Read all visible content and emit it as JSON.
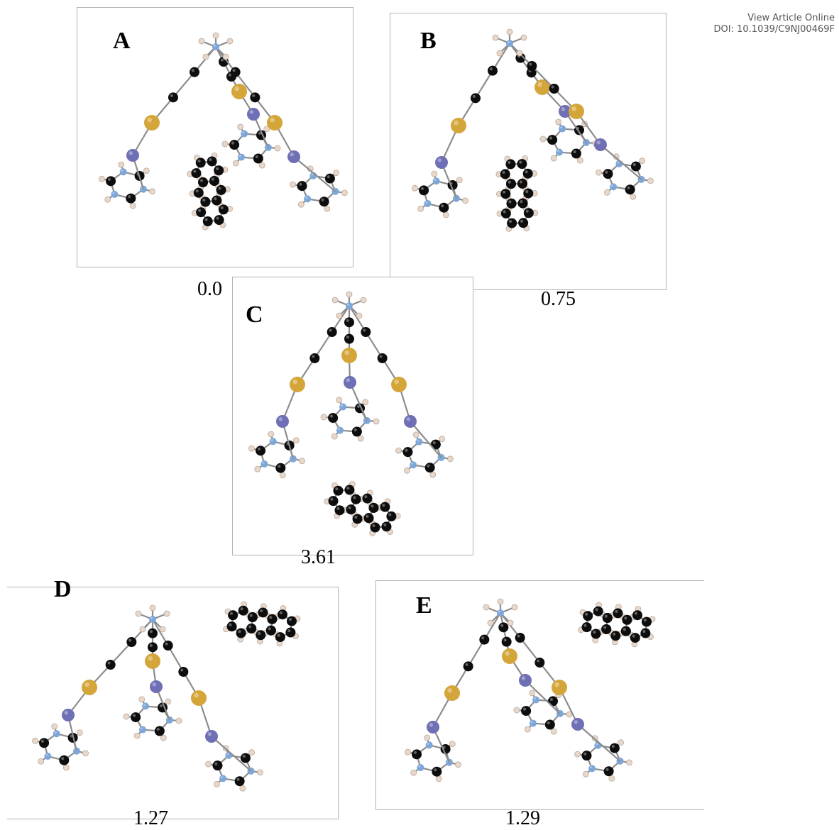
{
  "header": {
    "line1": "View Article Online",
    "line2": "DOI: 10.1039/C9NJ00469F"
  },
  "panels": [
    {
      "label": "A",
      "energy": "0.0"
    },
    {
      "label": "B",
      "energy": "0.75"
    },
    {
      "label": "C",
      "energy": "3.61"
    },
    {
      "label": "D",
      "energy": "1.27"
    },
    {
      "label": "E",
      "energy": "1.29"
    }
  ],
  "colors": {
    "carbon": "#0d0d0d",
    "hydrogen": "#e8d8cc",
    "nitrogen": "#7da7d9",
    "metal": "#6f6fb5",
    "gold": "#d4a63a",
    "bond": "#8c8c8c",
    "frame": "#b3b3b3"
  }
}
